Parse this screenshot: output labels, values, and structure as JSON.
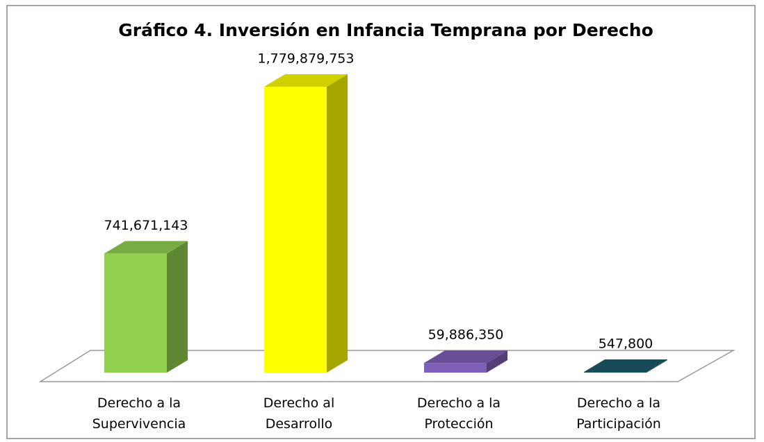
{
  "chart_data": {
    "type": "bar3d",
    "title": "Gráfico 4. Inversión en Infancia Temprana por Derecho",
    "categories": [
      "Derecho a la Supervivencia",
      "Derecho al Desarrollo",
      "Derecho a la Protección",
      "Derecho a la Participación"
    ],
    "values": [
      741671143,
      1779879753,
      59886350,
      547800
    ],
    "value_labels": [
      "741,671,143",
      "1,779,879,753",
      "59,886,350",
      "547,800"
    ],
    "colors": [
      "#92d050",
      "#ffff00",
      "#7f5fb8",
      "#1f5a6a"
    ]
  }
}
